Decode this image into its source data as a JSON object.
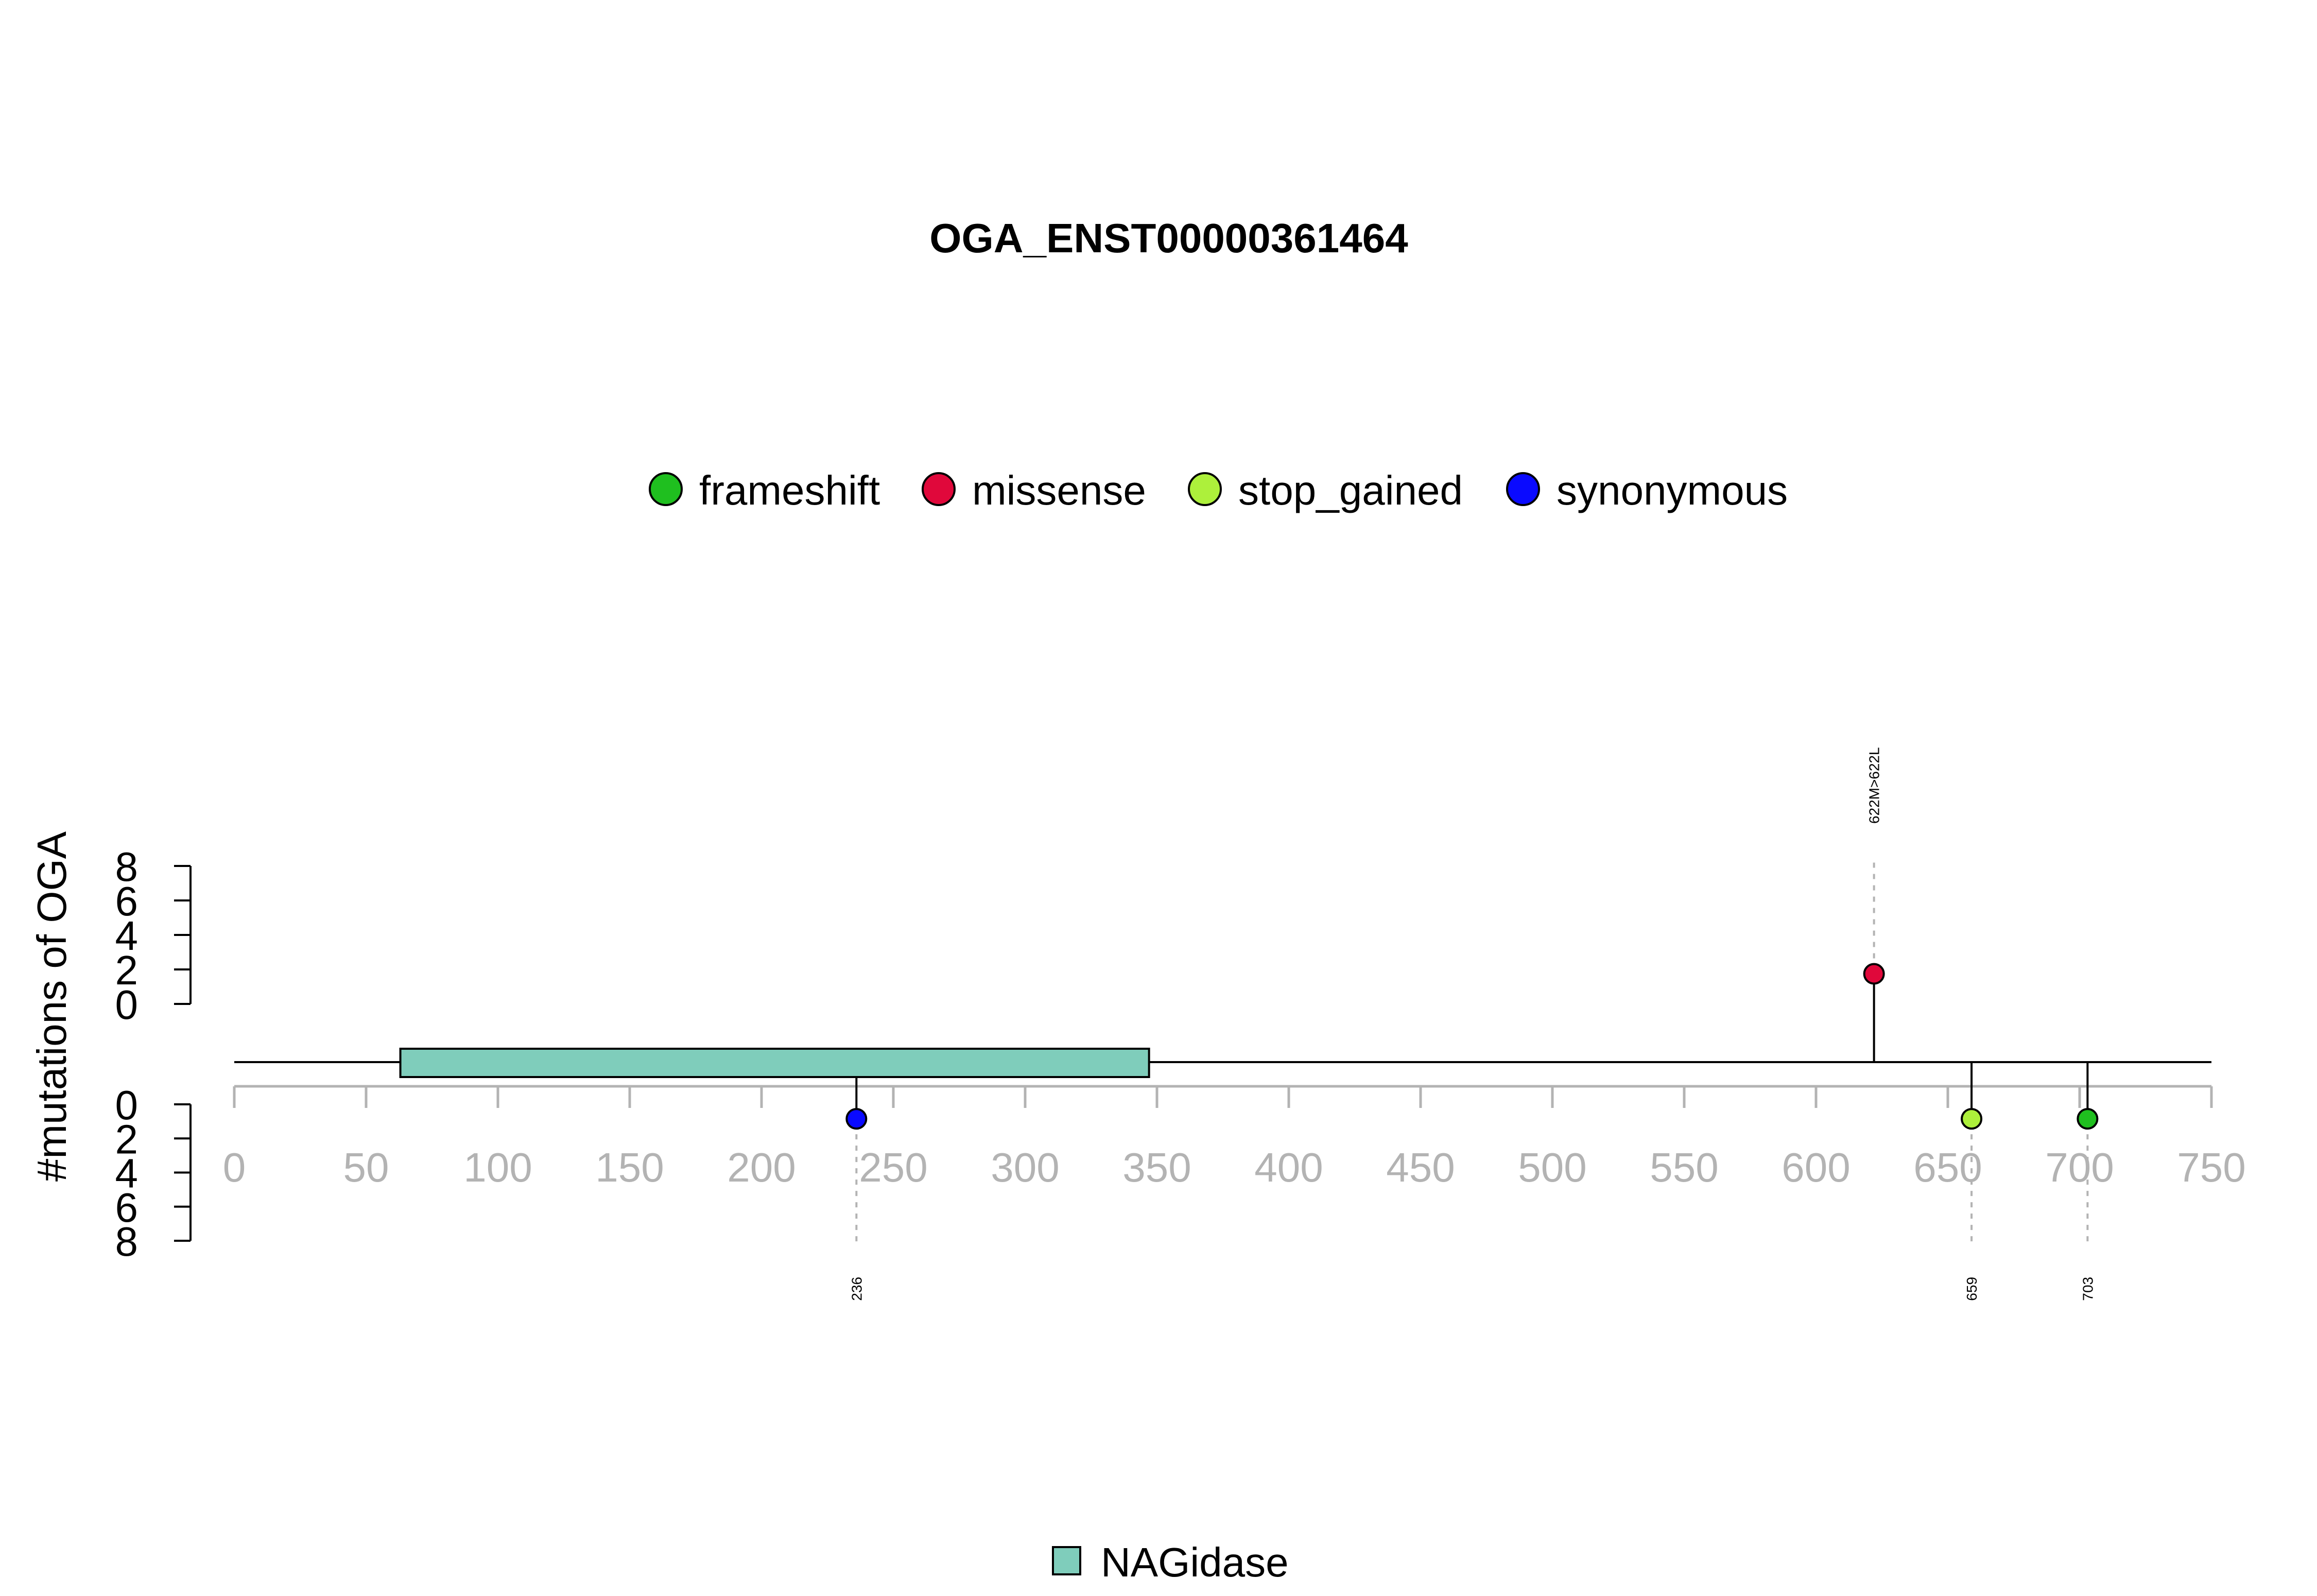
{
  "chart_data": {
    "type": "lollipop",
    "title": "OGA_ENST00000361464",
    "ylabel": "#mutations of OGA",
    "protein_length": 750,
    "x_ticks": [
      0,
      50,
      100,
      150,
      200,
      250,
      300,
      350,
      400,
      450,
      500,
      550,
      600,
      650,
      700,
      750
    ],
    "y_ticks": [
      0,
      2,
      4,
      6,
      8
    ],
    "ylim": [
      0,
      8
    ],
    "mutation_types": [
      {
        "name": "frameshift",
        "color": "#1fbf1f"
      },
      {
        "name": "missense",
        "color": "#e0083b"
      },
      {
        "name": "stop_gained",
        "color": "#adf03b"
      },
      {
        "name": "synonymous",
        "color": "#0a0aff"
      }
    ],
    "domains": [
      {
        "name": "NAGidase",
        "start": 63,
        "end": 347,
        "color": "#7fcdbb"
      }
    ],
    "mutations": [
      {
        "position": 622,
        "count": 1,
        "type": "missense",
        "label": "622M>622L",
        "side": "top"
      },
      {
        "position": 236,
        "count": 1,
        "type": "synonymous",
        "label": "236",
        "side": "bottom"
      },
      {
        "position": 659,
        "count": 1,
        "type": "stop_gained",
        "label": "659",
        "side": "bottom"
      },
      {
        "position": 703,
        "count": 1,
        "type": "frameshift",
        "label": "703",
        "side": "bottom"
      }
    ]
  }
}
